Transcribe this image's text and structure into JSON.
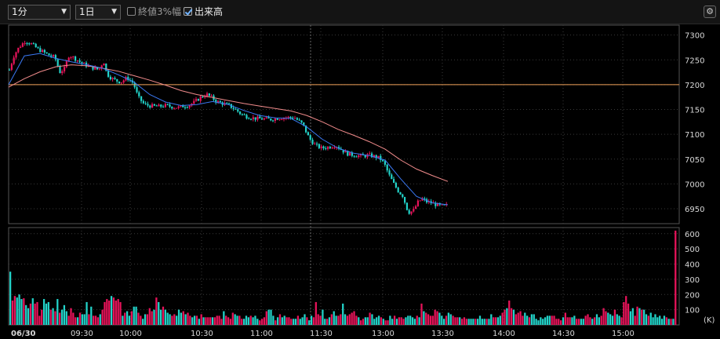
{
  "toolbar": {
    "interval": {
      "value": "1分",
      "arrow": "▼"
    },
    "period": {
      "value": "1日",
      "arrow": "▼"
    },
    "close3pct": {
      "label": "終値3%幅",
      "checked": false
    },
    "volume": {
      "label": "出来高",
      "checked": true
    },
    "settings_icon": "⚙"
  },
  "colors": {
    "background": "#000000",
    "up_candle": "#e8135a",
    "down_candle": "#22d3c9",
    "ma_short": "#3a78f2",
    "ma_long": "#f28c8c",
    "reference_line": "#f2a25a",
    "grid": "#3a3a3a"
  },
  "chart_data": [
    {
      "type": "candlestick",
      "name": "price",
      "y_ticks": [
        "7300",
        "7250",
        "7200",
        "7150",
        "7100",
        "7050",
        "7000",
        "6950"
      ],
      "ylim": [
        6920,
        7320
      ],
      "reference_line": 7200,
      "x_ticks": [
        "06/30",
        "09:30",
        "10:00",
        "10:30",
        "11:00",
        "11:30",
        "13:00",
        "13:30",
        "14:00",
        "14:30",
        "15:00"
      ],
      "path": [
        [
          0,
          7230
        ],
        [
          6,
          7260
        ],
        [
          12,
          7275
        ],
        [
          20,
          7288
        ],
        [
          28,
          7282
        ],
        [
          36,
          7272
        ],
        [
          44,
          7265
        ],
        [
          52,
          7258
        ],
        [
          58,
          7255
        ],
        [
          64,
          7225
        ],
        [
          70,
          7232
        ],
        [
          76,
          7260
        ],
        [
          84,
          7252
        ],
        [
          94,
          7242
        ],
        [
          104,
          7235
        ],
        [
          114,
          7230
        ],
        [
          120,
          7248
        ],
        [
          124,
          7222
        ],
        [
          130,
          7213
        ],
        [
          136,
          7208
        ],
        [
          142,
          7205
        ],
        [
          150,
          7214
        ],
        [
          158,
          7203
        ],
        [
          164,
          7175
        ],
        [
          172,
          7160
        ],
        [
          180,
          7157
        ],
        [
          190,
          7156
        ],
        [
          200,
          7158
        ],
        [
          208,
          7155
        ],
        [
          216,
          7154
        ],
        [
          222,
          7157
        ],
        [
          228,
          7158
        ],
        [
          236,
          7165
        ],
        [
          244,
          7175
        ],
        [
          252,
          7180
        ],
        [
          258,
          7174
        ],
        [
          264,
          7166
        ],
        [
          272,
          7162
        ],
        [
          280,
          7158
        ],
        [
          288,
          7150
        ],
        [
          296,
          7140
        ],
        [
          304,
          7135
        ],
        [
          314,
          7132
        ],
        [
          324,
          7131
        ],
        [
          334,
          7130
        ],
        [
          344,
          7133
        ],
        [
          354,
          7134
        ],
        [
          364,
          7133
        ],
        [
          374,
          7120
        ],
        [
          382,
          7092
        ],
        [
          390,
          7078
        ],
        [
          398,
          7072
        ],
        [
          406,
          7074
        ],
        [
          416,
          7078
        ],
        [
          424,
          7068
        ],
        [
          432,
          7060
        ],
        [
          440,
          7058
        ],
        [
          450,
          7056
        ],
        [
          458,
          7058
        ],
        [
          466,
          7055
        ],
        [
          472,
          7052
        ],
        [
          478,
          7040
        ],
        [
          484,
          7018
        ],
        [
          490,
          7000
        ],
        [
          496,
          6985
        ],
        [
          502,
          6975
        ],
        [
          506,
          6952
        ],
        [
          510,
          6942
        ],
        [
          516,
          6948
        ],
        [
          520,
          6962
        ],
        [
          526,
          6970
        ],
        [
          532,
          6964
        ],
        [
          538,
          6962
        ],
        [
          544,
          6958
        ],
        [
          552,
          6955
        ],
        [
          560,
          6958
        ]
      ],
      "ma_short": [
        [
          0,
          7200
        ],
        [
          20,
          7258
        ],
        [
          40,
          7263
        ],
        [
          60,
          7253
        ],
        [
          80,
          7246
        ],
        [
          100,
          7240
        ],
        [
          120,
          7233
        ],
        [
          140,
          7220
        ],
        [
          160,
          7205
        ],
        [
          180,
          7180
        ],
        [
          200,
          7165
        ],
        [
          220,
          7158
        ],
        [
          240,
          7160
        ],
        [
          260,
          7166
        ],
        [
          280,
          7160
        ],
        [
          300,
          7148
        ],
        [
          320,
          7138
        ],
        [
          340,
          7133
        ],
        [
          360,
          7132
        ],
        [
          380,
          7115
        ],
        [
          400,
          7090
        ],
        [
          420,
          7072
        ],
        [
          440,
          7062
        ],
        [
          460,
          7057
        ],
        [
          480,
          7048
        ],
        [
          500,
          7010
        ],
        [
          520,
          6975
        ],
        [
          540,
          6962
        ],
        [
          560,
          6958
        ]
      ],
      "ma_long": [
        [
          0,
          7195
        ],
        [
          20,
          7212
        ],
        [
          40,
          7226
        ],
        [
          60,
          7236
        ],
        [
          80,
          7240
        ],
        [
          100,
          7238
        ],
        [
          120,
          7233
        ],
        [
          140,
          7227
        ],
        [
          160,
          7218
        ],
        [
          180,
          7209
        ],
        [
          200,
          7199
        ],
        [
          220,
          7188
        ],
        [
          240,
          7180
        ],
        [
          260,
          7174
        ],
        [
          280,
          7168
        ],
        [
          300,
          7162
        ],
        [
          320,
          7157
        ],
        [
          340,
          7152
        ],
        [
          360,
          7147
        ],
        [
          380,
          7138
        ],
        [
          400,
          7125
        ],
        [
          420,
          7110
        ],
        [
          440,
          7098
        ],
        [
          460,
          7085
        ],
        [
          480,
          7070
        ],
        [
          500,
          7048
        ],
        [
          520,
          7030
        ],
        [
          540,
          7017
        ],
        [
          560,
          7005
        ]
      ]
    },
    {
      "type": "bar",
      "name": "volume",
      "y_ticks": [
        "600",
        "500",
        "400",
        "300",
        "200",
        "100"
      ],
      "unit": "(K)",
      "ylim": [
        0,
        640
      ],
      "volumes": [
        350,
        160,
        190,
        180,
        200,
        170,
        175,
        130,
        110,
        140,
        175,
        140,
        150,
        60,
        100,
        170,
        140,
        150,
        100,
        110,
        90,
        170,
        80,
        100,
        130,
        90,
        60,
        110,
        80,
        50,
        50,
        80,
        70,
        70,
        150,
        70,
        120,
        60,
        60,
        50,
        70,
        100,
        150,
        170,
        160,
        190,
        180,
        160,
        170,
        150,
        60,
        80,
        90,
        60,
        90,
        120,
        120,
        80,
        60,
        40,
        70,
        70,
        110,
        90,
        100,
        180,
        150,
        100,
        120,
        100,
        80,
        70,
        60,
        70,
        60,
        100,
        80,
        90,
        70,
        80,
        60,
        50,
        60,
        60,
        40,
        70,
        50,
        50,
        50,
        50,
        50,
        50,
        60,
        60,
        40,
        90,
        60,
        50,
        40,
        80,
        70,
        60,
        60,
        40,
        40,
        60,
        50,
        60,
        50,
        60,
        40,
        30,
        40,
        50,
        90,
        100,
        100,
        60,
        30,
        50,
        70,
        50,
        60,
        50,
        50,
        40,
        40,
        40,
        60,
        40,
        50,
        70,
        50,
        30,
        60,
        50,
        150,
        70,
        60,
        100,
        40,
        40,
        50,
        70,
        90,
        60,
        60,
        70,
        140,
        70,
        60,
        70,
        80,
        90,
        60,
        50,
        30,
        40,
        50,
        50,
        80,
        70,
        40,
        50,
        60,
        50,
        40,
        30,
        30,
        60,
        40,
        60,
        40,
        50,
        50,
        40,
        50,
        60,
        60,
        50,
        40,
        60,
        50,
        140,
        90,
        80,
        70,
        60,
        60,
        100,
        90,
        80,
        60,
        40,
        60,
        80,
        70,
        60,
        50,
        50,
        50,
        40,
        50,
        40,
        40,
        40,
        40,
        40,
        40,
        60,
        40,
        40,
        40,
        40,
        70,
        50,
        50,
        50,
        60,
        80,
        100,
        110,
        160,
        110,
        100,
        70,
        80,
        90,
        60,
        80,
        60,
        50,
        70,
        70,
        40,
        30,
        50,
        40,
        50,
        60,
        60,
        60,
        60,
        40,
        40,
        30,
        50,
        80,
        50,
        50,
        50,
        60,
        40,
        40,
        40,
        40,
        60,
        70,
        50,
        40,
        50,
        70,
        50,
        60,
        110,
        90,
        80,
        70,
        60,
        100,
        70,
        60,
        50,
        150,
        190,
        140,
        90,
        110,
        60,
        120,
        110,
        100,
        100,
        70,
        60,
        80,
        50,
        70,
        50,
        60,
        40,
        60,
        50,
        40,
        40,
        40,
        620
      ]
    }
  ]
}
